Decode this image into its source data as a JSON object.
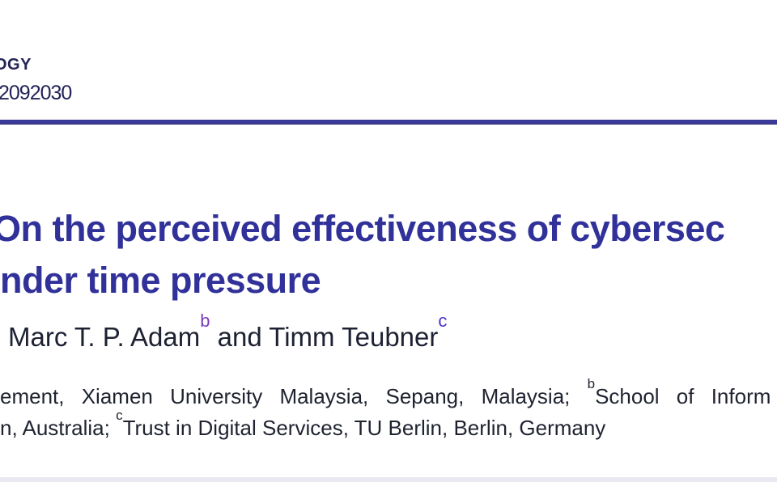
{
  "journal_header": {
    "journal_name_fragment": "OGY",
    "doi_fragment": "2092030"
  },
  "title": {
    "line1": "On the perceived effectiveness of cybersec",
    "line2": "nder time pressure"
  },
  "authors": {
    "author1_name": "Marc T. P. Adam",
    "author1_sup": "b",
    "connector": " and ",
    "author2_name": "Timm Teubner",
    "author2_sup": "c"
  },
  "affiliations": {
    "line1_pre": "ement, Xiamen University Malaysia, Sepang, Malaysia; ",
    "line1_sup": "b",
    "line1_post": "School of Inform",
    "line2_pre": "n, Australia; ",
    "line2_sup": "c",
    "line2_post": "Trust in Digital Services, TU Berlin, Berlin, Germany"
  },
  "colors": {
    "title_blue": "#31319a",
    "rule_navy": "#3a3a99",
    "header_navy": "#232358",
    "body_text": "#1f2330",
    "superscript_b_purple": "#7a3cba",
    "superscript_c_indigo": "#4836c8",
    "abstract_band": "#e9e9f2"
  }
}
